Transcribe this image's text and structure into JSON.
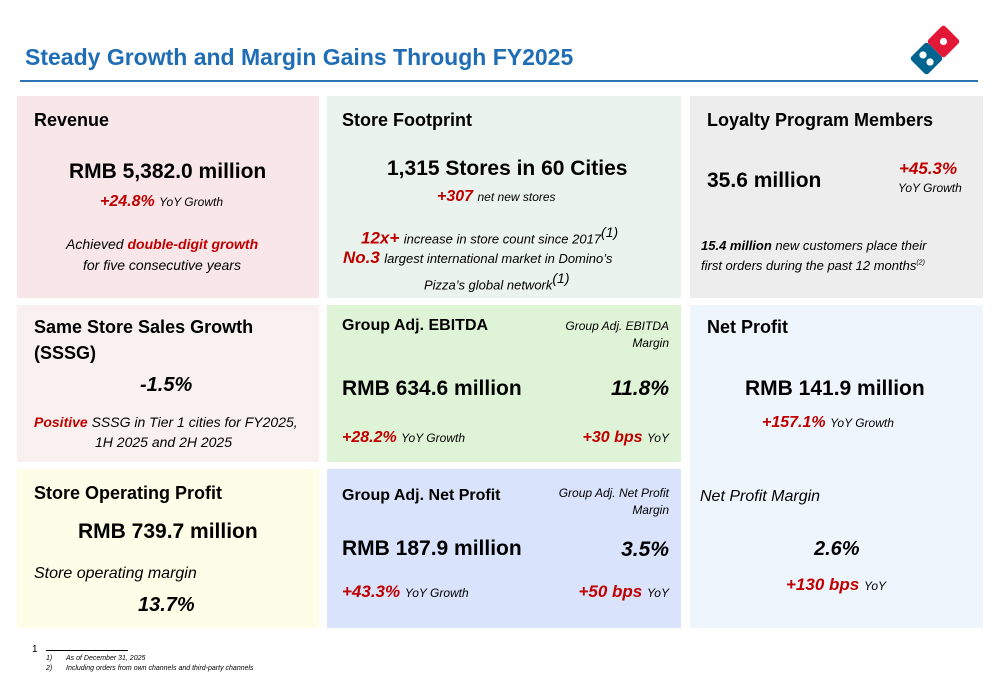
{
  "title": "Steady Growth and Margin Gains Through FY2025",
  "revenue": {
    "heading": "Revenue",
    "value": "RMB 5,382.0 million",
    "growth": "+24.8%",
    "growth_label": "YoY Growth",
    "note_prefix": "Achieved ",
    "note_highlight": "double-digit growth",
    "note_line2": "for five consecutive years"
  },
  "store_footprint": {
    "heading": "Store Footprint",
    "value": "1,315 Stores in 60 Cities",
    "net_new": "+307",
    "net_new_label": "net new stores",
    "increase": "12x+",
    "increase_label": "increase in store count since 2017",
    "increase_ref": "(1)",
    "rank": "No.3",
    "rank_label": "largest international market in Domino’s",
    "rank_line2": "Pizza’s global network",
    "rank_ref": "(1)"
  },
  "loyalty": {
    "heading": "Loyalty Program Members",
    "value": "35.6 million",
    "growth": "+45.3%",
    "growth_label": "YoY Growth",
    "note_bold": "15.4 million",
    "note_rest": " new customers place their",
    "note_line2": "first orders during the past 12 months",
    "note_ref": "(2)"
  },
  "sssg": {
    "heading_line1": "Same Store Sales Growth",
    "heading_line2": "(SSSG)",
    "value": "-1.5%",
    "note_highlight": "Positive",
    "note_rest": " SSSG in Tier 1 cities for FY2025,",
    "note_line2": "1H 2025 and 2H 2025"
  },
  "ebitda": {
    "heading": "Group Adj. EBITDA",
    "margin_label_line1": "Group Adj. EBITDA",
    "margin_label_line2": "Margin",
    "value": "RMB 634.6 million",
    "margin": "11.8%",
    "growth": "+28.2%",
    "growth_label": "YoY Growth",
    "margin_change": "+30 bps",
    "margin_change_label": "YoY"
  },
  "net_profit": {
    "heading": "Net Profit",
    "value": "RMB 141.9 million",
    "growth": "+157.1%",
    "growth_label": "YoY Growth",
    "margin_label": "Net Profit Margin",
    "margin": "2.6%",
    "margin_change": "+130 bps",
    "margin_change_label": "YoY"
  },
  "store_op_profit": {
    "heading": "Store Operating Profit",
    "value": "RMB 739.7 million",
    "margin_label": "Store operating margin",
    "margin": "13.7%"
  },
  "adj_net_profit": {
    "heading": "Group Adj. Net Profit",
    "margin_label_line1": "Group Adj. Net Profit",
    "margin_label_line2": "Margin",
    "value": "RMB 187.9 million",
    "margin": "3.5%",
    "growth": "+43.3%",
    "growth_label": "YoY Growth",
    "margin_change": "+50 bps",
    "margin_change_label": "YoY"
  },
  "footer": {
    "page_number": "1",
    "notes": [
      {
        "num": "1)",
        "text": "As of December 31, 2025"
      },
      {
        "num": "2)",
        "text": "Including orders from own channels and third-party channels"
      }
    ]
  },
  "colors": {
    "title": "#1f6db5",
    "accent_red": "#c00000",
    "logo_red": "#e31837",
    "logo_blue": "#006491"
  },
  "icons": {
    "logo": "dominos-logo"
  }
}
